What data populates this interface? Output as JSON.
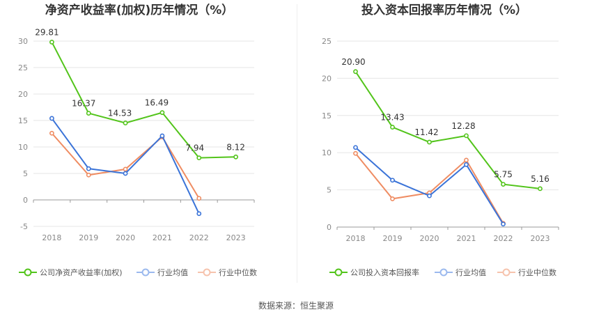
{
  "source_label": "数据来源：恒生聚源",
  "chart_data": [
    {
      "type": "line",
      "title": "净资产收益率(加权)历年情况（%）",
      "categories": [
        "2018",
        "2019",
        "2020",
        "2021",
        "2022",
        "2023"
      ],
      "ylim": [
        -5,
        30
      ],
      "yticks": [
        -5,
        0,
        5,
        10,
        15,
        20,
        25,
        30
      ],
      "grid": true,
      "legend_position": "bottom",
      "series": [
        {
          "name": "公司净资产收益率(加权)",
          "color": "#52c41a",
          "values": [
            29.81,
            16.37,
            14.53,
            16.49,
            7.94,
            8.12
          ],
          "labels": [
            "29.81",
            "16.37",
            "14.53",
            "16.49",
            "7.94",
            "8.12"
          ]
        },
        {
          "name": "行业均值",
          "color": "#3a73d8",
          "values": [
            15.4,
            5.9,
            5.0,
            12.1,
            -2.6,
            null
          ]
        },
        {
          "name": "行业中位数",
          "color": "#ef8c62",
          "values": [
            12.6,
            4.7,
            5.8,
            11.9,
            0.3,
            null
          ]
        }
      ]
    },
    {
      "type": "line",
      "title": "投入资本回报率历年情况（%）",
      "categories": [
        "2018",
        "2019",
        "2020",
        "2021",
        "2022",
        "2023"
      ],
      "ylim": [
        0,
        25
      ],
      "yticks": [
        0,
        5,
        10,
        15,
        20,
        25
      ],
      "grid": true,
      "legend_position": "bottom",
      "series": [
        {
          "name": "公司投入资本回报率",
          "color": "#52c41a",
          "values": [
            20.9,
            13.43,
            11.42,
            12.28,
            5.75,
            5.16
          ],
          "labels": [
            "20.90",
            "13.43",
            "11.42",
            "12.28",
            "5.75",
            "5.16"
          ]
        },
        {
          "name": "行业均值",
          "color": "#3a73d8",
          "values": [
            10.7,
            6.3,
            4.2,
            8.4,
            0.4,
            null
          ]
        },
        {
          "name": "行业中位数",
          "color": "#ef8c62",
          "values": [
            9.9,
            3.8,
            4.6,
            9.0,
            0.5,
            null
          ]
        }
      ]
    }
  ]
}
